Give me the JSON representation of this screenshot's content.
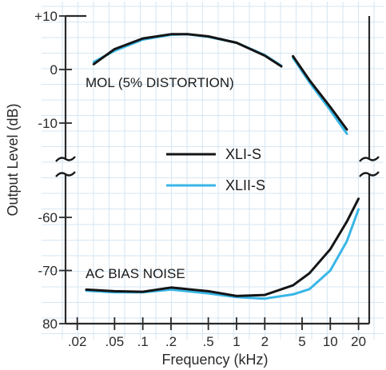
{
  "chart_data": {
    "type": "line",
    "xlabel": "Frequency (kHz)",
    "ylabel": "Output Level (dB)",
    "x_scale": "log",
    "x_ticks": [
      {
        "value": 0.02,
        "label": ".02"
      },
      {
        "value": 0.05,
        "label": ".05"
      },
      {
        "value": 0.1,
        "label": ".1"
      },
      {
        "value": 0.2,
        "label": ".2"
      },
      {
        "value": 0.5,
        "label": ".5"
      },
      {
        "value": 1,
        "label": "1"
      },
      {
        "value": 2,
        "label": "2"
      },
      {
        "value": 5,
        "label": "5"
      },
      {
        "value": 10,
        "label": "10"
      },
      {
        "value": 20,
        "label": "20"
      }
    ],
    "y_axis_broken": true,
    "y_ticks": [
      {
        "value": 10,
        "label": "+10"
      },
      {
        "value": 0,
        "label": "0"
      },
      {
        "value": -10,
        "label": "-10"
      },
      {
        "value": -60,
        "label": "-60"
      },
      {
        "value": -70,
        "label": "-70"
      },
      {
        "value": -80,
        "label": "80"
      }
    ],
    "grid": true,
    "legend_position": "center-right",
    "annotations": {
      "mol": "MOL (5% DISTORTION)",
      "noise": "AC BIAS NOISE"
    },
    "series": [
      {
        "name": "XLI-S",
        "color": "#151515",
        "mol": [
          [
            0.03,
            1
          ],
          [
            0.05,
            3.8
          ],
          [
            0.1,
            5.8
          ],
          [
            0.2,
            6.6
          ],
          [
            0.3,
            6.6
          ],
          [
            0.5,
            6.2
          ],
          [
            1,
            5
          ],
          [
            2,
            2.6
          ],
          [
            3,
            0.6
          ]
        ],
        "mol_hf": [
          [
            4,
            2.5
          ],
          [
            6,
            -2
          ],
          [
            10,
            -7
          ],
          [
            15,
            -11.2
          ]
        ],
        "noise": [
          [
            0.025,
            -73.6
          ],
          [
            0.05,
            -73.9
          ],
          [
            0.1,
            -74
          ],
          [
            0.2,
            -73.2
          ],
          [
            0.5,
            -73.9
          ],
          [
            1,
            -74.8
          ],
          [
            2,
            -74.6
          ],
          [
            4,
            -72.8
          ],
          [
            6,
            -70.5
          ],
          [
            10,
            -66
          ],
          [
            15,
            -60.8
          ],
          [
            20,
            -56.5
          ]
        ]
      },
      {
        "name": "XLII-S",
        "color": "#39b6e6",
        "mol": [
          [
            0.03,
            1.4
          ],
          [
            0.05,
            3.5
          ],
          [
            0.1,
            5.6
          ],
          [
            0.2,
            6.5
          ],
          [
            0.3,
            6.6
          ],
          [
            0.5,
            6.1
          ],
          [
            1,
            5
          ],
          [
            2,
            2.7
          ],
          [
            3,
            0.7
          ]
        ],
        "mol_hf": [
          [
            4,
            2.2
          ],
          [
            6,
            -2.4
          ],
          [
            10,
            -7.6
          ],
          [
            15,
            -12
          ]
        ],
        "noise": [
          [
            0.025,
            -73.8
          ],
          [
            0.05,
            -74.1
          ],
          [
            0.1,
            -74.1
          ],
          [
            0.2,
            -73.6
          ],
          [
            0.5,
            -74.3
          ],
          [
            1,
            -75
          ],
          [
            2,
            -75.3
          ],
          [
            4,
            -74.5
          ],
          [
            6,
            -73.5
          ],
          [
            10,
            -70
          ],
          [
            15,
            -64.5
          ],
          [
            20,
            -58.5
          ]
        ]
      }
    ]
  }
}
